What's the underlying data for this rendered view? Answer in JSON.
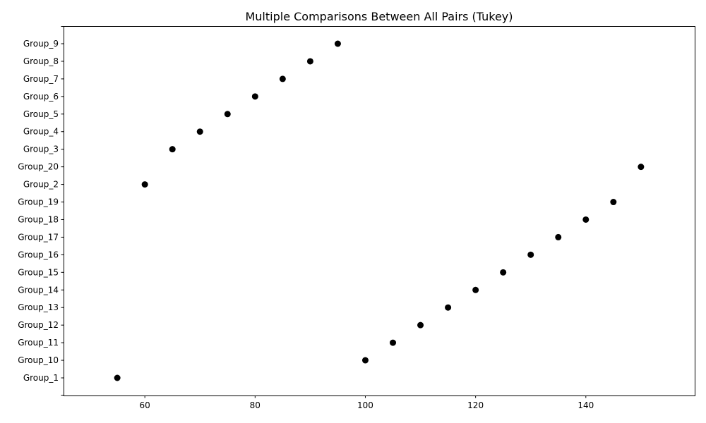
{
  "chart_data": {
    "type": "scatter",
    "title": "Multiple Comparisons Between All Pairs (Tukey)",
    "xlabel": "",
    "ylabel": "",
    "xlim": [
      45.25,
      159.75
    ],
    "x_ticks": [
      60,
      80,
      100,
      120,
      140
    ],
    "categories": [
      "Group_1",
      "Group_10",
      "Group_11",
      "Group_12",
      "Group_13",
      "Group_14",
      "Group_15",
      "Group_16",
      "Group_17",
      "Group_18",
      "Group_19",
      "Group_2",
      "Group_20",
      "Group_3",
      "Group_4",
      "Group_5",
      "Group_6",
      "Group_7",
      "Group_8",
      "Group_9"
    ],
    "values": [
      55,
      100,
      105,
      110,
      115,
      120,
      125,
      130,
      135,
      140,
      145,
      60,
      150,
      65,
      70,
      75,
      80,
      85,
      90,
      95
    ],
    "grid": false,
    "marker_color": "#000000"
  }
}
